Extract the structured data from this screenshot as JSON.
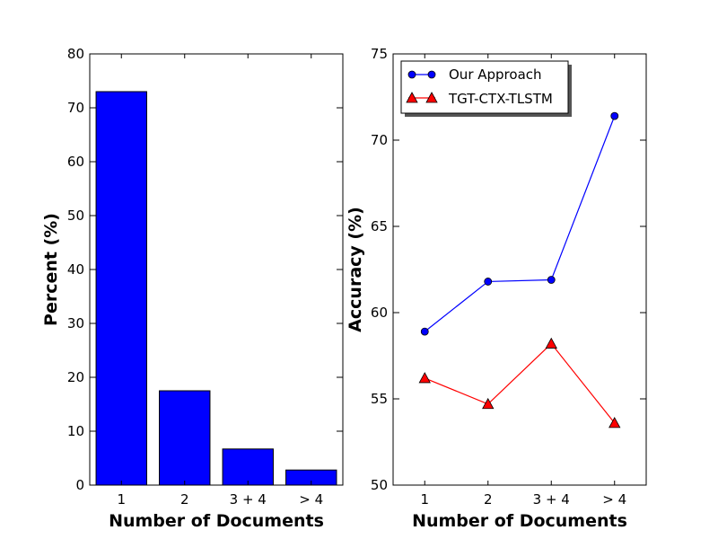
{
  "chart_data": [
    {
      "type": "bar",
      "categories": [
        "1",
        "2",
        "3 + 4",
        "> 4"
      ],
      "values": [
        73,
        17.5,
        6.7,
        2.8
      ],
      "xlabel": "Number of Documents",
      "ylabel": "Percent (%)",
      "ylim": [
        0,
        80
      ],
      "yticks": [
        0,
        10,
        20,
        30,
        40,
        50,
        60,
        70,
        80
      ],
      "bar_color": "#0000ff",
      "grid": false
    },
    {
      "type": "line",
      "categories": [
        "1",
        "2",
        "3 + 4",
        "> 4"
      ],
      "series": [
        {
          "name": "Our Approach",
          "values": [
            58.9,
            61.8,
            61.9,
            71.4
          ],
          "color": "#0000ff",
          "marker": "circle"
        },
        {
          "name": "TGT-CTX-TLSTM",
          "values": [
            56.2,
            54.7,
            58.2,
            53.6
          ],
          "color": "#ff0000",
          "marker": "triangle"
        }
      ],
      "xlabel": "Number of Documents",
      "ylabel": "Accuracy (%)",
      "ylim": [
        50,
        75
      ],
      "yticks": [
        50,
        55,
        60,
        65,
        70,
        75
      ],
      "legend": "top-left",
      "grid": false
    }
  ]
}
